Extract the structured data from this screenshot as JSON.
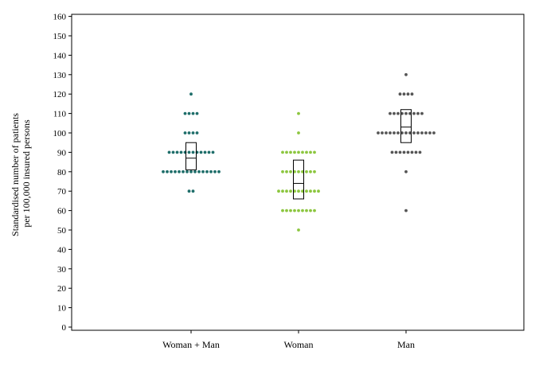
{
  "chart_data": {
    "type": "scatter",
    "title": "",
    "ylabel_lines": [
      "Standardised number of patients",
      "per 100,000 insured persons"
    ],
    "xlabel": "",
    "ylim": [
      0,
      160
    ],
    "ytick_step": 10,
    "grid": false,
    "categories": [
      "Woman + Man",
      "Woman",
      "Man"
    ],
    "series": [
      {
        "category": "Woman + Man",
        "color": "#1f6e6a",
        "points": [
          {
            "y": 120,
            "count": 1
          },
          {
            "y": 110,
            "count": 4
          },
          {
            "y": 100,
            "count": 4
          },
          {
            "y": 90,
            "count": 12
          },
          {
            "y": 80,
            "count": 15
          },
          {
            "y": 70,
            "count": 2
          }
        ],
        "box": {
          "q1": 81,
          "median": 87,
          "q3": 95
        }
      },
      {
        "category": "Woman",
        "color": "#8cc63f",
        "points": [
          {
            "y": 110,
            "count": 1
          },
          {
            "y": 100,
            "count": 1
          },
          {
            "y": 90,
            "count": 9
          },
          {
            "y": 80,
            "count": 9
          },
          {
            "y": 70,
            "count": 11
          },
          {
            "y": 60,
            "count": 9
          },
          {
            "y": 50,
            "count": 1
          }
        ],
        "box": {
          "q1": 66,
          "median": 74,
          "q3": 86
        }
      },
      {
        "category": "Man",
        "color": "#555555",
        "points": [
          {
            "y": 130,
            "count": 1
          },
          {
            "y": 120,
            "count": 4
          },
          {
            "y": 110,
            "count": 9
          },
          {
            "y": 100,
            "count": 15
          },
          {
            "y": 90,
            "count": 8
          },
          {
            "y": 80,
            "count": 1
          },
          {
            "y": 60,
            "count": 1
          }
        ],
        "box": {
          "q1": 95,
          "median": 103,
          "q3": 112
        }
      }
    ]
  }
}
